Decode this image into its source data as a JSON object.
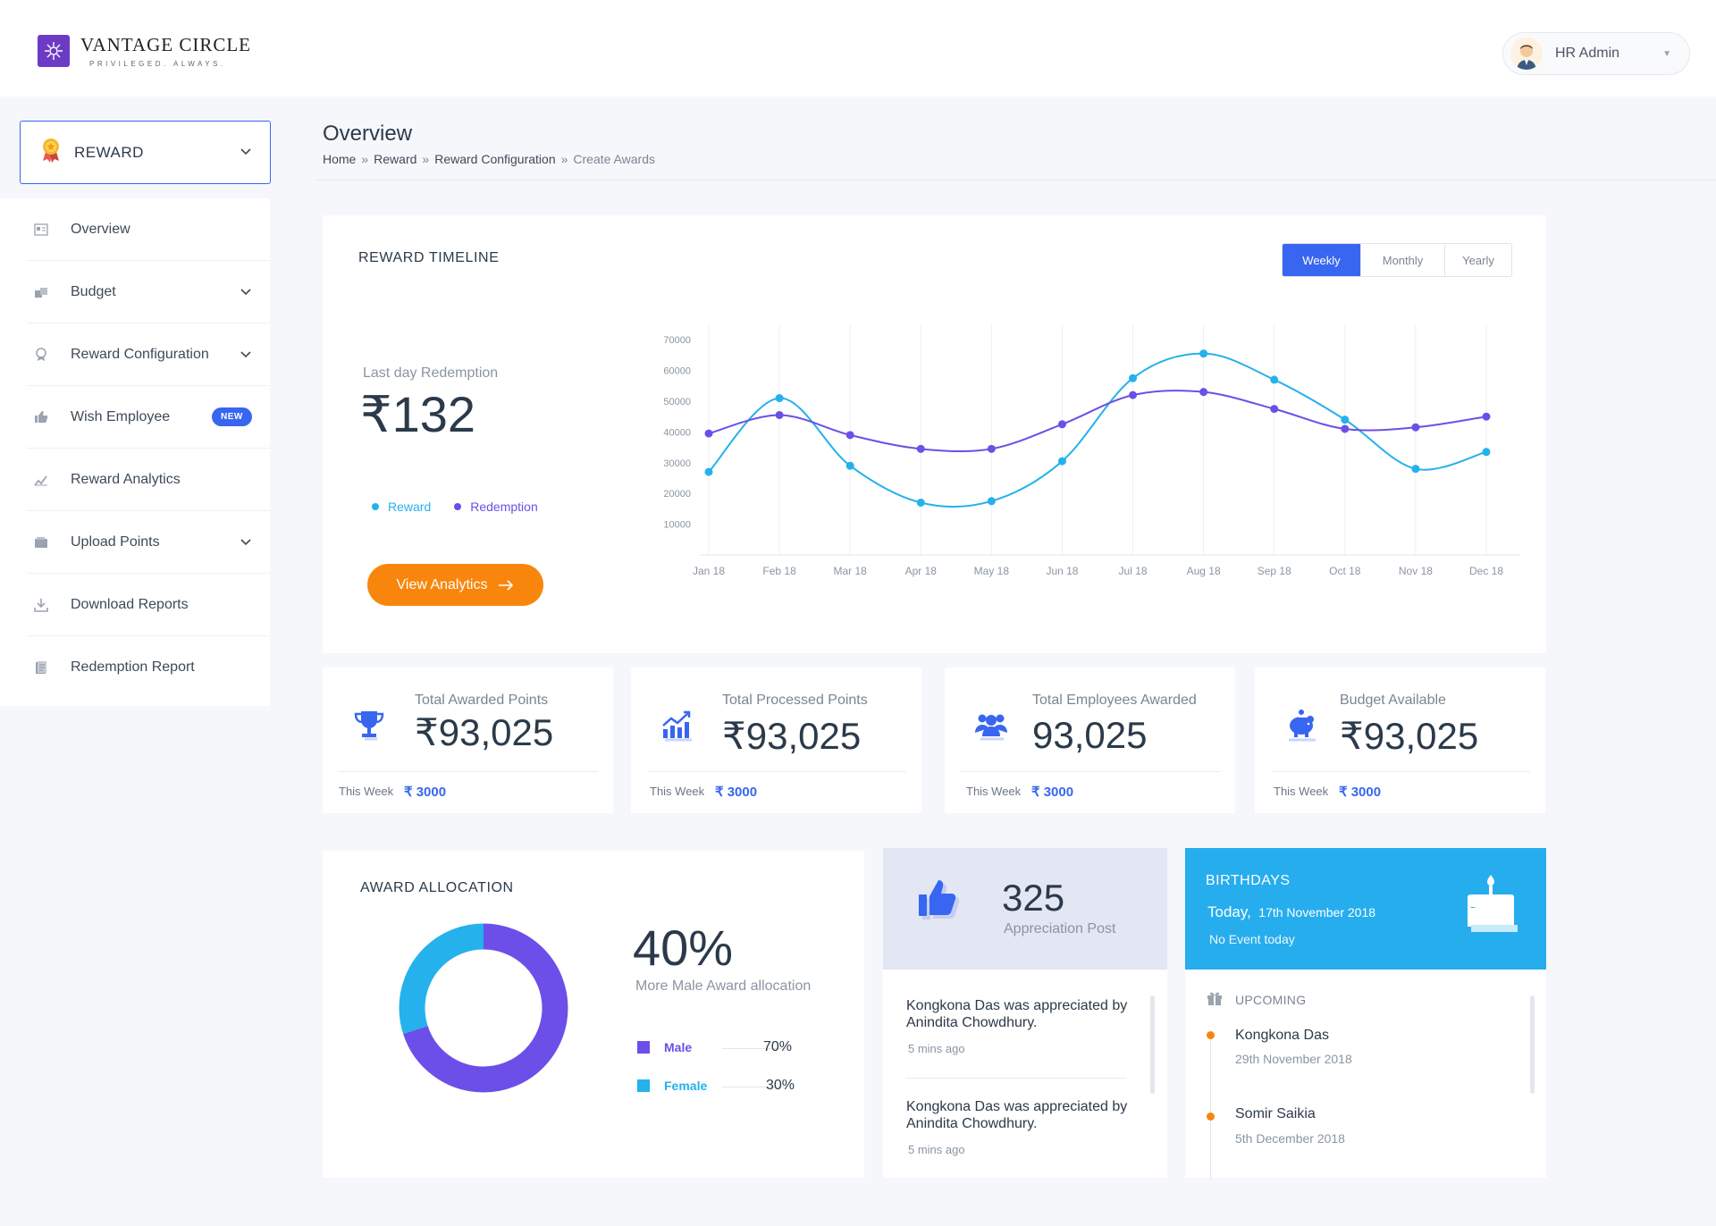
{
  "brand": {
    "name": "VANTAGE  CIRCLE",
    "tagline": "PRIVILEGED. ALWAYS."
  },
  "user": {
    "name": "HR Admin"
  },
  "module": {
    "label": "REWARD"
  },
  "sidebar": {
    "items": [
      {
        "label": "Overview",
        "icon": "overview-icon"
      },
      {
        "label": "Budget",
        "icon": "budget-icon",
        "expandable": true
      },
      {
        "label": "Reward Configuration",
        "icon": "award-icon",
        "expandable": true
      },
      {
        "label": "Wish Employee",
        "icon": "thumbs-up-icon",
        "badge": "NEW"
      },
      {
        "label": "Reward Analytics",
        "icon": "analytics-icon"
      },
      {
        "label": "Upload Points",
        "icon": "wallet-icon",
        "expandable": true
      },
      {
        "label": "Download Reports",
        "icon": "download-icon"
      },
      {
        "label": "Redemption Report",
        "icon": "report-icon"
      }
    ]
  },
  "page": {
    "title": "Overview",
    "breadcrumb": [
      "Home",
      "Reward",
      "Reward Configuration",
      "Create Awards"
    ]
  },
  "timeline": {
    "title": "REWARD TIMELINE",
    "periods": [
      "Weekly",
      "Monthly",
      "Yearly"
    ],
    "active_period": "Weekly",
    "last_day_label": "Last day Redemption",
    "last_day_value": "₹132",
    "cta": "View Analytics"
  },
  "chart_data": {
    "type": "line",
    "x": [
      "Jan 18",
      "Feb 18",
      "Mar 18",
      "Apr 18",
      "May 18",
      "Jun 18",
      "Jul 18",
      "Aug 18",
      "Sep 18",
      "Oct 18",
      "Nov 18",
      "Dec 18"
    ],
    "series": [
      {
        "name": "Reward",
        "color": "#25b1ec",
        "values": [
          27000,
          51000,
          29000,
          17000,
          17500,
          30500,
          57500,
          65500,
          57000,
          44000,
          28000,
          33500
        ]
      },
      {
        "name": "Redemption",
        "color": "#6b4fe8",
        "values": [
          39500,
          45500,
          39000,
          34500,
          34500,
          42500,
          52000,
          53000,
          47500,
          41000,
          41500,
          45000
        ]
      }
    ],
    "yticks": [
      10000,
      20000,
      30000,
      40000,
      50000,
      60000,
      70000
    ],
    "ylim": [
      0,
      75000
    ],
    "grid": "vertical",
    "smooth": true
  },
  "stats": [
    {
      "label": "Total Awarded Points",
      "value": "₹93,025",
      "week_label": "This Week",
      "week_value": "₹ 3000",
      "icon": "trophy-icon"
    },
    {
      "label": "Total Processed Points",
      "value": "₹93,025",
      "week_label": "This Week",
      "week_value": "₹ 3000",
      "icon": "trend-up-icon"
    },
    {
      "label": "Total Employees Awarded",
      "value": "93,025",
      "week_label": "This Week",
      "week_value": "₹ 3000",
      "icon": "people-icon"
    },
    {
      "label": "Budget Available",
      "value": "₹93,025",
      "week_label": "This Week",
      "week_value": "₹ 3000",
      "icon": "piggy-bank-icon"
    }
  ],
  "allocation": {
    "title": "AWARD ALLOCATION",
    "headline": "40%",
    "subtitle": "More Male Award allocation",
    "items": [
      {
        "label": "Male",
        "value": "70%",
        "fraction": 0.7,
        "color": "#6b4fe8"
      },
      {
        "label": "Female",
        "value": "30%",
        "fraction": 0.3,
        "color": "#25b1ec"
      }
    ]
  },
  "appreciation": {
    "count": "325",
    "label": "Appreciation Post",
    "posts": [
      {
        "text": "Kongkona Das was appreciated by Anindita Chowdhury.",
        "time": "5 mins ago"
      },
      {
        "text": "Kongkona Das was appreciated by Anindita Chowdhury.",
        "time": "5 mins ago"
      }
    ]
  },
  "birthdays": {
    "title": "BIRTHDAYS",
    "today_label": "Today,",
    "today_date": "17th November 2018",
    "no_event": "No Event today",
    "upcoming_label": "UPCOMING",
    "upcoming": [
      {
        "name": "Kongkona Das",
        "date": "29th November 2018"
      },
      {
        "name": "Somir Saikia",
        "date": "5th December 2018"
      }
    ]
  },
  "colors": {
    "primary": "#3866f0",
    "accent": "#f8860d",
    "reward": "#25b1ec",
    "redemption": "#6b4fe8"
  }
}
